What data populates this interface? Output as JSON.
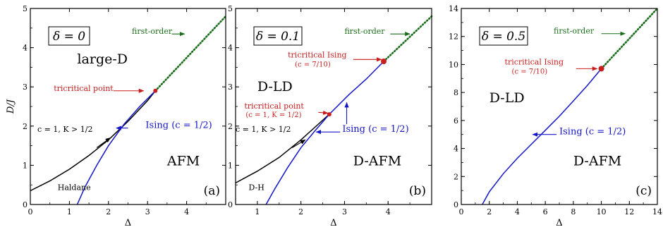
{
  "chart_data": [
    {
      "type": "line",
      "xlabel": "Δ",
      "ylabel": "D/J",
      "xlim": [
        0,
        5
      ],
      "ylim": [
        0,
        5
      ],
      "xticks": [
        0,
        1,
        2,
        3,
        4
      ],
      "yticks": [
        0,
        1,
        2,
        3,
        4,
        5
      ],
      "delta_box": "δ = 0",
      "panel_label": "(a)",
      "series": [
        {
          "name": "c = 1, K > 1/2",
          "color": "#000000",
          "style": "solid",
          "points": [
            [
              0,
              0.35
            ],
            [
              0.5,
              0.6
            ],
            [
              1,
              0.9
            ],
            [
              1.5,
              1.25
            ],
            [
              2,
              1.65
            ],
            [
              2.5,
              2.12
            ],
            [
              3,
              2.65
            ],
            [
              3.2,
              2.9
            ]
          ]
        },
        {
          "name": "Ising (c = 1/2)",
          "color": "#1515c8",
          "style": "solid",
          "points": [
            [
              1.2,
              0
            ],
            [
              1.4,
              0.45
            ],
            [
              1.7,
              1.0
            ],
            [
              2.0,
              1.5
            ],
            [
              2.4,
              2.05
            ],
            [
              2.8,
              2.5
            ],
            [
              3.2,
              2.9
            ]
          ]
        },
        {
          "name": "first-order",
          "color": "#1a6e1a",
          "style": "dotted",
          "points": [
            [
              3.2,
              2.9
            ],
            [
              5,
              4.8
            ]
          ]
        }
      ],
      "critical_point": {
        "x": 3.2,
        "y": 2.9,
        "label": "tricritical point",
        "sub": ""
      },
      "labels": [
        {
          "text": "large-D",
          "x": 1.2,
          "y": 3.6,
          "color": "#000000",
          "size": "big"
        },
        {
          "text": "AFM",
          "x": 3.5,
          "y": 1.0,
          "color": "#000000",
          "size": "big"
        },
        {
          "text": "Haldane",
          "x": 0.7,
          "y": 0.37,
          "color": "#000000",
          "size": "small"
        },
        {
          "text": "c = 1, K > 1/2",
          "x": 0.18,
          "y": 1.85,
          "color": "#000000",
          "size": "small"
        },
        {
          "text": "Ising (c = 1/2)",
          "x": 2.95,
          "y": 1.95,
          "color": "#1515c8",
          "size": "mid"
        },
        {
          "text": "first-order",
          "x": 2.6,
          "y": 4.35,
          "color": "#1a6e1a",
          "size": "small"
        },
        {
          "text": "tricritical point",
          "x": 0.6,
          "y": 2.9,
          "color": "#c81e1e",
          "size": "small"
        }
      ],
      "arrows": [
        {
          "from": [
            3.62,
            4.35
          ],
          "to": [
            3.95,
            4.35
          ],
          "color": "#1a6e1a"
        },
        {
          "from": [
            2.13,
            2.9
          ],
          "to": [
            2.9,
            2.9
          ],
          "color": "#c81e1e"
        },
        {
          "from": [
            2.5,
            1.95
          ],
          "to": [
            2.2,
            1.95
          ],
          "color": "#1515c8"
        },
        {
          "from": [
            1.7,
            1.45
          ],
          "to": [
            2.05,
            1.7
          ],
          "color": "#000000"
        }
      ]
    },
    {
      "type": "line",
      "xlabel": "Δ",
      "ylabel": "",
      "xlim": [
        0.5,
        5
      ],
      "ylim": [
        0,
        5
      ],
      "xticks": [
        1,
        2,
        3,
        4
      ],
      "yticks": [
        0,
        1,
        2,
        3,
        4,
        5
      ],
      "delta_box": "δ = 0.1",
      "panel_label": "(b)",
      "series": [
        {
          "name": "c = 1, K > 1/2",
          "color": "#000000",
          "style": "solid",
          "points": [
            [
              0.5,
              0.55
            ],
            [
              1,
              0.85
            ],
            [
              1.5,
              1.2
            ],
            [
              2,
              1.65
            ],
            [
              2.4,
              2.05
            ],
            [
              2.65,
              2.3
            ]
          ]
        },
        {
          "name": "Ising (c = 1/2)",
          "color": "#1515c8",
          "style": "solid",
          "points": [
            [
              1.2,
              0
            ],
            [
              1.4,
              0.4
            ],
            [
              1.7,
              0.95
            ],
            [
              2.0,
              1.45
            ],
            [
              2.3,
              1.85
            ],
            [
              2.65,
              2.3
            ],
            [
              3.1,
              2.8
            ],
            [
              3.5,
              3.2
            ],
            [
              3.9,
              3.65
            ]
          ]
        },
        {
          "name": "first-order",
          "color": "#1a6e1a",
          "style": "dotted",
          "points": [
            [
              3.9,
              3.65
            ],
            [
              5,
              4.8
            ]
          ]
        }
      ],
      "critical_point": {
        "x": 3.9,
        "y": 3.65,
        "label": "tricritical Ising",
        "sub": "(c = 7/10)"
      },
      "second_point": {
        "x": 2.65,
        "y": 2.3,
        "label": "tricritical point",
        "sub": "(c = 1, K = 1/2)"
      },
      "labels": [
        {
          "text": "D-LD",
          "x": 1.0,
          "y": 2.9,
          "color": "#000000",
          "size": "big"
        },
        {
          "text": "D-AFM",
          "x": 3.2,
          "y": 1.0,
          "color": "#000000",
          "size": "big"
        },
        {
          "text": "D-H",
          "x": 0.8,
          "y": 0.37,
          "color": "#000000",
          "size": "small"
        },
        {
          "text": "c = 1, K > 1/2",
          "x": 0.5,
          "y": 1.85,
          "color": "#000000",
          "size": "small"
        },
        {
          "text": "Ising (c = 1/2)",
          "x": 2.95,
          "y": 1.85,
          "color": "#1515c8",
          "size": "mid"
        },
        {
          "text": "first-order",
          "x": 3.0,
          "y": 4.35,
          "color": "#1a6e1a",
          "size": "small"
        },
        {
          "text": "tricritical Ising",
          "x": 1.7,
          "y": 3.75,
          "color": "#c81e1e",
          "size": "small"
        },
        {
          "text": "tricritical point",
          "x": 0.7,
          "y": 2.45,
          "color": "#c81e1e",
          "size": "small"
        }
      ],
      "arrows": [
        {
          "from": [
            4.05,
            4.35
          ],
          "to": [
            4.5,
            4.35
          ],
          "color": "#1a6e1a"
        },
        {
          "from": [
            3.2,
            3.7
          ],
          "to": [
            3.85,
            3.7
          ],
          "color": "#c81e1e"
        },
        {
          "from": [
            2.4,
            2.35
          ],
          "to": [
            2.62,
            2.33
          ],
          "color": "#c81e1e"
        },
        {
          "from": [
            2.9,
            1.85
          ],
          "to": [
            2.35,
            1.85
          ],
          "color": "#1515c8"
        },
        {
          "from": [
            3.05,
            2.05
          ],
          "to": [
            3.05,
            2.6
          ],
          "color": "#1515c8"
        },
        {
          "from": [
            1.8,
            1.45
          ],
          "to": [
            2.1,
            1.65
          ],
          "color": "#000000"
        }
      ]
    },
    {
      "type": "line",
      "xlabel": "Δ",
      "ylabel": "",
      "xlim": [
        0,
        14
      ],
      "ylim": [
        0,
        14
      ],
      "xticks": [
        0,
        2,
        4,
        6,
        8,
        10,
        12,
        14
      ],
      "yticks": [
        0,
        2,
        4,
        6,
        8,
        10,
        12,
        14
      ],
      "delta_box": "δ = 0.5",
      "panel_label": "(c)",
      "series": [
        {
          "name": "Ising (c = 1/2)",
          "color": "#1515c8",
          "style": "solid",
          "points": [
            [
              1.5,
              0
            ],
            [
              2,
              0.9
            ],
            [
              3,
              2.2
            ],
            [
              4,
              3.3
            ],
            [
              5,
              4.3
            ],
            [
              6,
              5.3
            ],
            [
              7,
              6.3
            ],
            [
              8,
              7.4
            ],
            [
              9,
              8.5
            ],
            [
              10,
              9.7
            ]
          ]
        },
        {
          "name": "first-order",
          "color": "#1a6e1a",
          "style": "dotted",
          "points": [
            [
              10,
              9.7
            ],
            [
              14,
              14
            ]
          ]
        }
      ],
      "critical_point": {
        "x": 10,
        "y": 9.7,
        "label": "tricritical Ising",
        "sub": "(c = 7/10)"
      },
      "labels": [
        {
          "text": "D-LD",
          "x": 2.0,
          "y": 7.3,
          "color": "#000000",
          "size": "big"
        },
        {
          "text": "D-AFM",
          "x": 8.0,
          "y": 2.8,
          "color": "#000000",
          "size": "big"
        },
        {
          "text": "Ising (c = 1/2)",
          "x": 7.0,
          "y": 5.0,
          "color": "#1515c8",
          "size": "mid"
        },
        {
          "text": "first-order",
          "x": 6.6,
          "y": 12.2,
          "color": "#1a6e1a",
          "size": "small"
        },
        {
          "text": "tricritical Ising",
          "x": 3.1,
          "y": 10.0,
          "color": "#c81e1e",
          "size": "small"
        }
      ],
      "arrows": [
        {
          "from": [
            10.0,
            12.2
          ],
          "to": [
            11.7,
            12.2
          ],
          "color": "#1a6e1a"
        },
        {
          "from": [
            8.2,
            9.7
          ],
          "to": [
            9.7,
            9.7
          ],
          "color": "#c81e1e"
        },
        {
          "from": [
            6.8,
            5.0
          ],
          "to": [
            5.1,
            5.0
          ],
          "color": "#1515c8"
        }
      ]
    }
  ]
}
